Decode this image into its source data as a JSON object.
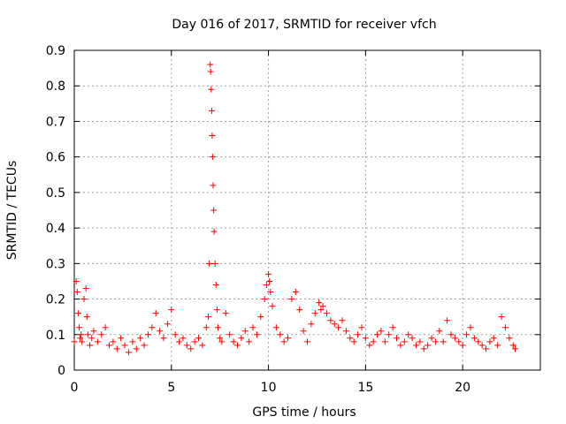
{
  "chart_data": {
    "type": "scatter",
    "title": "Day 016 of 2017, SRMTID for receiver vfch",
    "xlabel": "GPS time / hours",
    "ylabel": "SRMTID / TECUs",
    "xlim": [
      0,
      24
    ],
    "ylim": [
      0,
      0.9
    ],
    "xticks": [
      0,
      5,
      10,
      15,
      20
    ],
    "yticks": [
      0,
      0.1,
      0.2,
      0.3,
      0.4,
      0.5,
      0.6,
      0.7,
      0.8,
      0.9
    ],
    "xtick_labels": [
      "0",
      "5",
      "10",
      "15",
      "20"
    ],
    "ytick_labels": [
      "0",
      "0.1",
      "0.2",
      "0.3",
      "0.4",
      "0.5",
      "0.6",
      "0.7",
      "0.8",
      "0.9"
    ],
    "grid": true,
    "marker": "+",
    "color": "#ff0000",
    "series": [
      {
        "name": "SRMTID",
        "x": [
          0.0,
          0.1,
          0.15,
          0.2,
          0.25,
          0.3,
          0.35,
          0.4,
          0.5,
          0.6,
          0.65,
          0.7,
          0.8,
          0.9,
          1.0,
          1.2,
          1.4,
          1.6,
          1.8,
          2.0,
          2.2,
          2.4,
          2.6,
          2.8,
          3.0,
          3.2,
          3.4,
          3.6,
          3.8,
          4.0,
          4.2,
          4.4,
          4.6,
          4.8,
          5.0,
          5.2,
          5.4,
          5.6,
          5.8,
          6.0,
          6.2,
          6.4,
          6.6,
          6.8,
          6.9,
          6.95,
          7.0,
          7.02,
          7.05,
          7.08,
          7.1,
          7.12,
          7.15,
          7.18,
          7.2,
          7.25,
          7.3,
          7.35,
          7.4,
          7.5,
          7.6,
          7.8,
          8.0,
          8.2,
          8.4,
          8.6,
          8.8,
          9.0,
          9.2,
          9.4,
          9.6,
          9.8,
          9.9,
          10.0,
          10.05,
          10.1,
          10.2,
          10.4,
          10.6,
          10.8,
          11.0,
          11.2,
          11.4,
          11.6,
          11.8,
          12.0,
          12.2,
          12.4,
          12.6,
          12.7,
          12.8,
          13.0,
          13.2,
          13.4,
          13.6,
          13.8,
          14.0,
          14.2,
          14.4,
          14.6,
          14.8,
          15.0,
          15.2,
          15.4,
          15.6,
          15.8,
          16.0,
          16.2,
          16.4,
          16.6,
          16.8,
          17.0,
          17.2,
          17.4,
          17.6,
          17.8,
          18.0,
          18.2,
          18.4,
          18.6,
          18.8,
          19.0,
          19.2,
          19.4,
          19.6,
          19.8,
          20.0,
          20.2,
          20.4,
          20.6,
          20.8,
          21.0,
          21.2,
          21.4,
          21.6,
          21.8,
          22.0,
          22.2,
          22.4,
          22.6,
          22.7
        ],
        "y": [
          0.08,
          0.25,
          0.22,
          0.16,
          0.12,
          0.09,
          0.1,
          0.08,
          0.2,
          0.23,
          0.15,
          0.1,
          0.07,
          0.09,
          0.11,
          0.08,
          0.1,
          0.12,
          0.07,
          0.08,
          0.06,
          0.09,
          0.07,
          0.05,
          0.08,
          0.06,
          0.09,
          0.07,
          0.1,
          0.12,
          0.16,
          0.11,
          0.09,
          0.13,
          0.17,
          0.1,
          0.08,
          0.09,
          0.07,
          0.06,
          0.08,
          0.09,
          0.07,
          0.12,
          0.15,
          0.3,
          0.86,
          0.84,
          0.79,
          0.73,
          0.66,
          0.6,
          0.52,
          0.45,
          0.39,
          0.3,
          0.24,
          0.17,
          0.12,
          0.09,
          0.08,
          0.16,
          0.1,
          0.08,
          0.07,
          0.09,
          0.11,
          0.08,
          0.12,
          0.1,
          0.15,
          0.2,
          0.24,
          0.27,
          0.25,
          0.22,
          0.18,
          0.12,
          0.1,
          0.08,
          0.09,
          0.2,
          0.22,
          0.17,
          0.11,
          0.08,
          0.13,
          0.16,
          0.19,
          0.17,
          0.18,
          0.16,
          0.14,
          0.13,
          0.12,
          0.14,
          0.11,
          0.09,
          0.08,
          0.1,
          0.12,
          0.09,
          0.07,
          0.08,
          0.1,
          0.11,
          0.08,
          0.1,
          0.12,
          0.09,
          0.07,
          0.08,
          0.1,
          0.09,
          0.07,
          0.08,
          0.06,
          0.07,
          0.09,
          0.08,
          0.11,
          0.08,
          0.14,
          0.1,
          0.09,
          0.08,
          0.07,
          0.1,
          0.12,
          0.09,
          0.08,
          0.07,
          0.06,
          0.08,
          0.09,
          0.07,
          0.15,
          0.12,
          0.09,
          0.07,
          0.06
        ]
      }
    ]
  }
}
